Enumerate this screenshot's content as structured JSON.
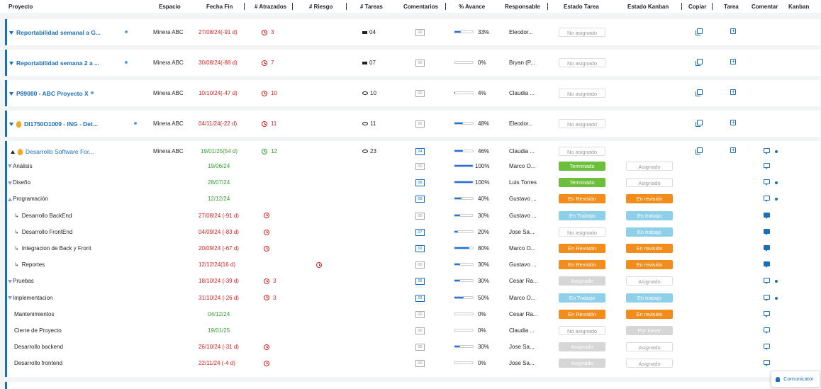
{
  "header": {
    "proyecto": "Proyecto",
    "espacio": "Espacio",
    "fecha_fin": "Fecha Fin",
    "atrasados": "# Atrazados",
    "riesgo": "# Riesgo",
    "tareas": "# Tareas",
    "comentarios": "Comentarios",
    "avance": "% Avance",
    "responsable": "Responsable",
    "estado_tarea": "Estado Tarea",
    "estado_kanban": "Estado Kanban",
    "copiar": "Copiar",
    "tarea": "Tarea",
    "comentar": "Comentar",
    "kanban": "Kanban"
  },
  "projects": [
    {
      "title": "Reportabilidad semanal a G...",
      "espacio": "Minera ABC",
      "fecha": "27/08/24(-91 d)",
      "atrasados": "3",
      "tareas": "04",
      "comentarios": "00",
      "avance": 33,
      "avance_label": "33%",
      "responsable": "Eleodor...",
      "estado": "No asignado"
    },
    {
      "title": "Reportabilidad semana 2 a ...",
      "espacio": "Minera ABC",
      "fecha": "30/08/24(-88 d)",
      "atrasados": "7",
      "tareas": "07",
      "comentarios": "00",
      "avance": 0,
      "avance_label": "0%",
      "responsable": "Bryan (P...",
      "estado": "No asignado"
    },
    {
      "title": "P89080 - ABC Proyecto X",
      "espacio": "Minera ABC",
      "fecha": "10/10/24(-47 d)",
      "atrasados": "10",
      "tareas": "10",
      "comentarios": "00",
      "avance": 4,
      "avance_label": "4%",
      "responsable": "Claudia ...",
      "estado": "No asignado"
    },
    {
      "title": "DI1750O1009 - ING - Det...",
      "espacio": "Minera ABC",
      "fecha": "04/11/24(-22 d)",
      "atrasados": "11",
      "tareas": "11",
      "comentarios": "00",
      "avance": 48,
      "avance_label": "48%",
      "responsable": "Eleodor...",
      "estado": "No asignado"
    }
  ],
  "expanded": {
    "title": "Desarrollo Software For...",
    "espacio": "Minera ABC",
    "fecha": "19/01/25(54 d)",
    "atrasados": "12",
    "tareas": "23",
    "comentarios": "24",
    "avance": 46,
    "avance_label": "46%",
    "responsable": "Claudia ...",
    "estado": "No asignado",
    "tasks": [
      {
        "name": "Análisis",
        "fecha": "19/06/24",
        "fecha_color": "green",
        "atrasados": "",
        "riesgo": false,
        "comentarios": "00",
        "c_active": false,
        "avance": 100,
        "avance_label": "100%",
        "responsable": "Marco O...",
        "estado": "Terminado",
        "estado_cls": "b-term",
        "kanban": "Asignado",
        "kanban_cls": "b-none",
        "chat": "outline",
        "kdot": false,
        "level": "parent-down"
      },
      {
        "name": "Diseño",
        "fecha": "28/07/24",
        "fecha_color": "green",
        "atrasados": "",
        "riesgo": false,
        "comentarios": "06",
        "c_active": true,
        "avance": 100,
        "avance_label": "100%",
        "responsable": "Luis Torres",
        "estado": "Terminado",
        "estado_cls": "b-term",
        "kanban": "Asignado",
        "kanban_cls": "b-none",
        "chat": "outline",
        "kdot": true,
        "level": "parent-down"
      },
      {
        "name": "Programación",
        "fecha": "12/12/24",
        "fecha_color": "green",
        "atrasados": "",
        "riesgo": false,
        "comentarios": "09",
        "c_active": true,
        "avance": 40,
        "avance_label": "40%",
        "responsable": "Gustavo ...",
        "estado": "En Revisión",
        "estado_cls": "b-rev",
        "kanban": "En revisión",
        "kanban_cls": "b-rev",
        "chat": "outline",
        "kdot": true,
        "level": "parent-up"
      },
      {
        "name": "Desarrollo BackEnd",
        "fecha": "27/08/24 (-91 d)",
        "fecha_color": "red",
        "atrasados": "",
        "clock": true,
        "riesgo": false,
        "comentarios": "00",
        "c_active": false,
        "avance": 30,
        "avance_label": "30%",
        "responsable": "Gustavo ...",
        "estado": "En Trabajo",
        "estado_cls": "b-trab",
        "kanban": "En trabajo",
        "kanban_cls": "b-trab",
        "chat": "filled",
        "kdot": false,
        "level": "child"
      },
      {
        "name": "Desarrollo FrontEnd",
        "fecha": "04/09/24 (-83 d)",
        "fecha_color": "red",
        "atrasados": "",
        "clock": true,
        "riesgo": false,
        "comentarios": "07",
        "c_active": true,
        "avance": 20,
        "avance_label": "20%",
        "responsable": "Jose Sa...",
        "estado": "No asignado",
        "estado_cls": "b-none",
        "kanban": "En trabajo",
        "kanban_cls": "b-trab",
        "chat": "filled",
        "kdot": false,
        "level": "child"
      },
      {
        "name": "Integracion de Back y Front",
        "fecha": "20/09/24 (-67 d)",
        "fecha_color": "red",
        "atrasados": "",
        "clock": true,
        "riesgo": false,
        "comentarios": "02",
        "c_active": true,
        "avance": 80,
        "avance_label": "80%",
        "responsable": "Marco O...",
        "estado": "En Revisión",
        "estado_cls": "b-rev",
        "kanban": "En revisión",
        "kanban_cls": "b-rev",
        "chat": "filled",
        "kdot": false,
        "level": "child"
      },
      {
        "name": "Reportes",
        "fecha": "12/12/24(16 d)",
        "fecha_color": "red",
        "atrasados": "",
        "clock": false,
        "riesgo": true,
        "comentarios": "00",
        "c_active": false,
        "avance": 30,
        "avance_label": "30%",
        "responsable": "Gustavo ...",
        "estado": "En Revisión",
        "estado_cls": "b-rev",
        "kanban": "En revisión",
        "kanban_cls": "b-rev",
        "chat": "filled",
        "kdot": false,
        "level": "child"
      },
      {
        "name": "Pruebas",
        "fecha": "18/10/24 (-39 d)",
        "fecha_color": "red",
        "atrasados": "3",
        "clock": true,
        "riesgo": false,
        "comentarios": "05",
        "c_active": true,
        "avance": 30,
        "avance_label": "30%",
        "responsable": "Cesar Ra...",
        "estado": "Asignado",
        "estado_cls": "b-asig",
        "kanban": "Asignado",
        "kanban_cls": "b-none",
        "chat": "outline",
        "kdot": true,
        "level": "parent-down"
      },
      {
        "name": "Implementacion",
        "fecha": "31/10/24 (-26 d)",
        "fecha_color": "red",
        "atrasados": "3",
        "clock": true,
        "riesgo": false,
        "comentarios": "03",
        "c_active": true,
        "avance": 50,
        "avance_label": "50%",
        "responsable": "Marco O...",
        "estado": "En Trabajo",
        "estado_cls": "b-trab",
        "kanban": "En trabajo",
        "kanban_cls": "b-trab",
        "chat": "outline",
        "kdot": true,
        "level": "parent-down"
      },
      {
        "name": "Mantenimientos",
        "fecha": "04/12/24",
        "fecha_color": "green",
        "atrasados": "",
        "clock": false,
        "riesgo": false,
        "comentarios": "00",
        "c_active": false,
        "avance": 0,
        "avance_label": "0%",
        "responsable": "Cesar Ra...",
        "estado": "En Revisión",
        "estado_cls": "b-rev",
        "kanban": "En revisión",
        "kanban_cls": "b-rev",
        "chat": "outline",
        "kdot": false,
        "level": "plain"
      },
      {
        "name": "Cierre de Proyecto",
        "fecha": "19/01/25",
        "fecha_color": "green",
        "atrasados": "",
        "clock": false,
        "riesgo": false,
        "comentarios": "00",
        "c_active": false,
        "avance": 0,
        "avance_label": "0%",
        "responsable": "Claudia ...",
        "estado": "No asignado",
        "estado_cls": "b-none",
        "kanban": "Por hacer",
        "kanban_cls": "b-asig",
        "chat": "outline",
        "kdot": false,
        "level": "plain"
      },
      {
        "name": "Desarrollo backend",
        "fecha": "26/10/24 (-31 d)",
        "fecha_color": "red",
        "atrasados": "",
        "clock": true,
        "riesgo": false,
        "comentarios": "00",
        "c_active": false,
        "avance": 30,
        "avance_label": "30%",
        "responsable": "Jose Sa...",
        "estado": "Asignado",
        "estado_cls": "b-asig",
        "kanban": "Asignado",
        "kanban_cls": "b-none",
        "chat": "outline",
        "kdot": false,
        "level": "plain"
      },
      {
        "name": "Desarrollo frontend",
        "fecha": "22/11/24 (-4 d)",
        "fecha_color": "red",
        "atrasados": "",
        "clock": true,
        "riesgo": false,
        "comentarios": "00",
        "c_active": false,
        "avance": 0,
        "avance_label": "0%",
        "responsable": "Jose Sa...",
        "estado": "Asignado",
        "estado_cls": "b-asig",
        "kanban": "Asignado",
        "kanban_cls": "b-none",
        "chat": "outline",
        "kdot": false,
        "level": "plain"
      }
    ]
  },
  "comunicator": "Comunicator",
  "colors": {
    "accent": "#1a6fb8",
    "red": "#d62020",
    "green": "#33a02c",
    "orange": "#f28c1b",
    "light_blue": "#8ecfea",
    "lime": "#6cbf3b"
  }
}
